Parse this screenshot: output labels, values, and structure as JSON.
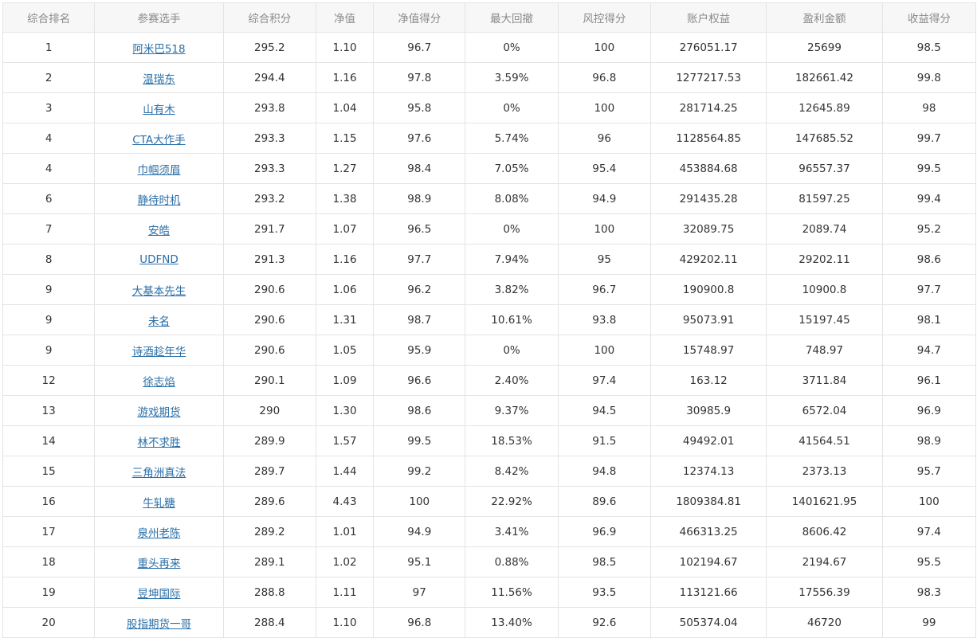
{
  "columns": [
    "综合排名",
    "参赛选手",
    "综合积分",
    "净值",
    "净值得分",
    "最大回撤",
    "风控得分",
    "账户权益",
    "盈利金额",
    "收益得分"
  ],
  "rows": [
    [
      "1",
      "阿米巴518",
      "295.2",
      "1.10",
      "96.7",
      "0%",
      "100",
      "276051.17",
      "25699",
      "98.5"
    ],
    [
      "2",
      "温瑞东",
      "294.4",
      "1.16",
      "97.8",
      "3.59%",
      "96.8",
      "1277217.53",
      "182661.42",
      "99.8"
    ],
    [
      "3",
      "山有木",
      "293.8",
      "1.04",
      "95.8",
      "0%",
      "100",
      "281714.25",
      "12645.89",
      "98"
    ],
    [
      "4",
      "CTA大作手",
      "293.3",
      "1.15",
      "97.6",
      "5.74%",
      "96",
      "1128564.85",
      "147685.52",
      "99.7"
    ],
    [
      "4",
      "巾帼须眉",
      "293.3",
      "1.27",
      "98.4",
      "7.05%",
      "95.4",
      "453884.68",
      "96557.37",
      "99.5"
    ],
    [
      "6",
      "静待时机",
      "293.2",
      "1.38",
      "98.9",
      "8.08%",
      "94.9",
      "291435.28",
      "81597.25",
      "99.4"
    ],
    [
      "7",
      "安皓",
      "291.7",
      "1.07",
      "96.5",
      "0%",
      "100",
      "32089.75",
      "2089.74",
      "95.2"
    ],
    [
      "8",
      "UDFND",
      "291.3",
      "1.16",
      "97.7",
      "7.94%",
      "95",
      "429202.11",
      "29202.11",
      "98.6"
    ],
    [
      "9",
      "大基本先生",
      "290.6",
      "1.06",
      "96.2",
      "3.82%",
      "96.7",
      "190900.8",
      "10900.8",
      "97.7"
    ],
    [
      "9",
      "未名",
      "290.6",
      "1.31",
      "98.7",
      "10.61%",
      "93.8",
      "95073.91",
      "15197.45",
      "98.1"
    ],
    [
      "9",
      "诗酒趁年华",
      "290.6",
      "1.05",
      "95.9",
      "0%",
      "100",
      "15748.97",
      "748.97",
      "94.7"
    ],
    [
      "12",
      "徐志焰",
      "290.1",
      "1.09",
      "96.6",
      "2.40%",
      "97.4",
      "163.12",
      "3711.84",
      "96.1"
    ],
    [
      "13",
      "游戏期货",
      "290",
      "1.30",
      "98.6",
      "9.37%",
      "94.5",
      "30985.9",
      "6572.04",
      "96.9"
    ],
    [
      "14",
      "林不求胜",
      "289.9",
      "1.57",
      "99.5",
      "18.53%",
      "91.5",
      "49492.01",
      "41564.51",
      "98.9"
    ],
    [
      "15",
      "三角洲真法",
      "289.7",
      "1.44",
      "99.2",
      "8.42%",
      "94.8",
      "12374.13",
      "2373.13",
      "95.7"
    ],
    [
      "16",
      "牛轧糖",
      "289.6",
      "4.43",
      "100",
      "22.92%",
      "89.6",
      "1809384.81",
      "1401621.95",
      "100"
    ],
    [
      "17",
      "泉州老陈",
      "289.2",
      "1.01",
      "94.9",
      "3.41%",
      "96.9",
      "466313.25",
      "8606.42",
      "97.4"
    ],
    [
      "18",
      "重头再来",
      "289.1",
      "1.02",
      "95.1",
      "0.88%",
      "98.5",
      "102194.67",
      "2194.67",
      "95.5"
    ],
    [
      "19",
      "昱坤国际",
      "288.8",
      "1.11",
      "97",
      "11.56%",
      "93.5",
      "113121.66",
      "17556.39",
      "98.3"
    ],
    [
      "20",
      "股指期货一哥",
      "288.4",
      "1.10",
      "96.8",
      "13.40%",
      "92.6",
      "505374.04",
      "46720",
      "99"
    ]
  ],
  "colors": {
    "link": "#2a6fa8",
    "header_bg": "#f7f7f7",
    "border": "#e4e4e4",
    "header_text": "#8a8a8a",
    "cell_text": "#333333"
  }
}
